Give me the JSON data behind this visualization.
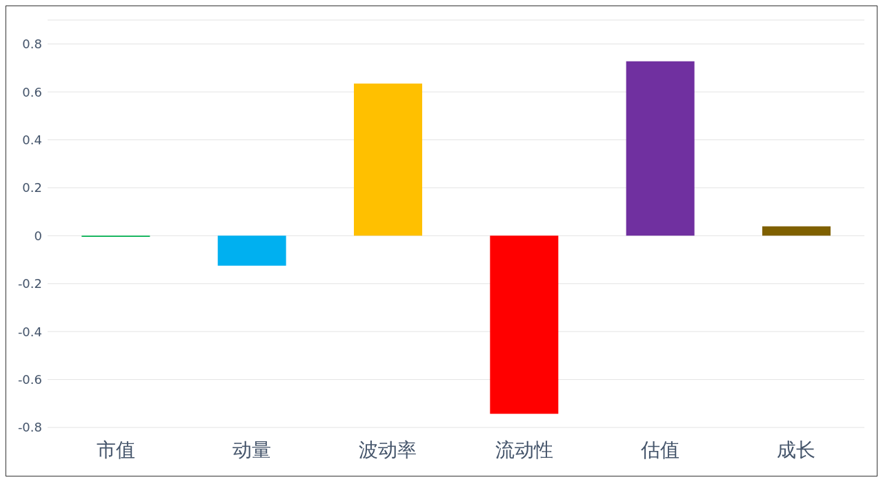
{
  "chart_data": {
    "type": "bar",
    "categories": [
      "市值",
      "动量",
      "波动率",
      "流动性",
      "估值",
      "成长"
    ],
    "values": [
      -0.005,
      -0.125,
      0.635,
      -0.743,
      0.728,
      0.039
    ],
    "colors": [
      "#00b050",
      "#00b0f0",
      "#ffc000",
      "#ff0000",
      "#7030a0",
      "#7f6000"
    ],
    "ylim": [
      -0.8,
      0.9
    ],
    "yticks": [
      {
        "value": -0.8,
        "label": "-0.8"
      },
      {
        "value": -0.6,
        "label": "-0.6"
      },
      {
        "value": -0.4,
        "label": "-0.4"
      },
      {
        "value": -0.2,
        "label": "-0.2"
      },
      0,
      {
        "value": 0.2,
        "label": "0.2"
      },
      {
        "value": 0.4,
        "label": "0.4"
      },
      {
        "value": 0.6,
        "label": "0.6"
      },
      {
        "value": 0.8,
        "label": "0.8"
      }
    ],
    "grid": "y",
    "legend": false
  }
}
